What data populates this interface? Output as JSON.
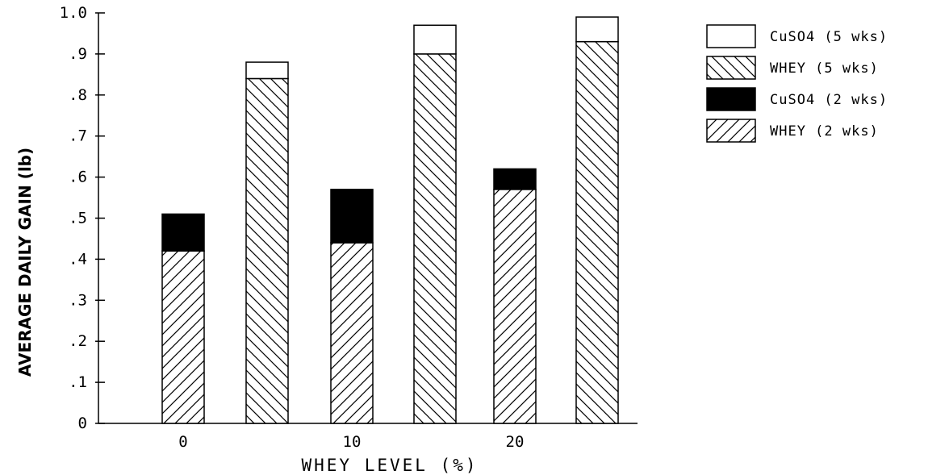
{
  "chart_data": {
    "type": "bar",
    "stacked": true,
    "xlabel": "WHEY LEVEL (%)",
    "ylabel": "AVERAGE DAILY GAIN (lb)",
    "ylim": [
      0,
      1.0
    ],
    "yticks": [
      "0",
      ".1",
      ".2",
      ".3",
      ".4",
      ".5",
      ".6",
      ".7",
      ".8",
      ".9",
      "1.0"
    ],
    "x_tick_labels": [
      "0",
      "10",
      "20"
    ],
    "groups": [
      {
        "whey_level": "0",
        "period": "2 wks",
        "whey": 0.42,
        "cuso4": 0.09
      },
      {
        "whey_level": "0",
        "period": "5 wks",
        "whey": 0.84,
        "cuso4": 0.04
      },
      {
        "whey_level": "10",
        "period": "2 wks",
        "whey": 0.44,
        "cuso4": 0.13
      },
      {
        "whey_level": "10",
        "period": "5 wks",
        "whey": 0.9,
        "cuso4": 0.07
      },
      {
        "whey_level": "20",
        "period": "2 wks",
        "whey": 0.57,
        "cuso4": 0.05
      },
      {
        "whey_level": "20",
        "period": "5 wks",
        "whey": 0.93,
        "cuso4": 0.06
      }
    ],
    "legend": [
      "CuSO4 (5 wks)",
      "WHEY (5 wks)",
      "CuSO4 (2 wks)",
      "WHEY (2 wks)"
    ],
    "legend_position": "right",
    "grid": false
  }
}
